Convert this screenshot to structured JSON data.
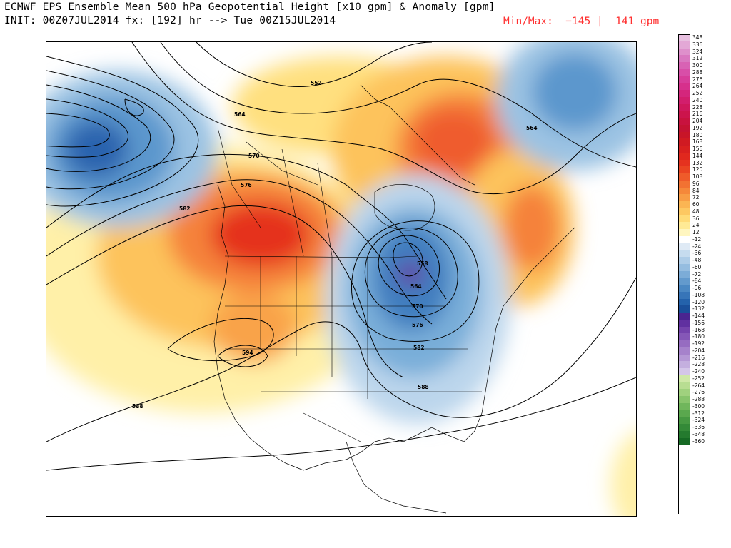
{
  "header": {
    "title_line1": "ECMWF EPS Ensemble Mean 500 hPa Geopotential Height [x10 gpm] & Anomaly [gpm]",
    "title_line2": "INIT: 00Z07JUL2014 fx: [192] hr --> Tue 00Z15JUL2014",
    "minmax": "Min/Max:  −145 |  141 gpm"
  },
  "colors": {
    "text": "#000000",
    "minmax_text": "#ff3030",
    "positive_anomaly_scale": [
      "#fffdd0",
      "#fff0a8",
      "#ffe07f",
      "#fdc35c",
      "#f9a348",
      "#f5823a",
      "#ef5b2f",
      "#e02d26"
    ],
    "negative_anomaly_scale": [
      "#dce9f5",
      "#bcd6ec",
      "#9bc3e3",
      "#79aed9",
      "#5b97cd",
      "#3f7ebf",
      "#2a64ae",
      "#6a2da0"
    ],
    "map_lines": "#000000",
    "terrain_outline": "#888888"
  },
  "colorbar": {
    "entries": [
      {
        "label": "348",
        "color": "#e8c0e0"
      },
      {
        "label": "336",
        "color": "#e3a8d6"
      },
      {
        "label": "324",
        "color": "#de90cb"
      },
      {
        "label": "312",
        "color": "#d978c0"
      },
      {
        "label": "300",
        "color": "#d862b4"
      },
      {
        "label": "288",
        "color": "#d84ea8"
      },
      {
        "label": "276",
        "color": "#d73d9a"
      },
      {
        "label": "264",
        "color": "#d6308c"
      },
      {
        "label": "252",
        "color": "#d4267c"
      },
      {
        "label": "240",
        "color": "#d21e6c"
      },
      {
        "label": "228",
        "color": "#cf185c"
      },
      {
        "label": "216",
        "color": "#cc144c"
      },
      {
        "label": "204",
        "color": "#c8123e"
      },
      {
        "label": "192",
        "color": "#c41232"
      },
      {
        "label": "180",
        "color": "#c81528"
      },
      {
        "label": "168",
        "color": "#d01a22"
      },
      {
        "label": "156",
        "color": "#d8201f"
      },
      {
        "label": "144",
        "color": "#e0281e"
      },
      {
        "label": "132",
        "color": "#e5321f"
      },
      {
        "label": "120",
        "color": "#ea4422"
      },
      {
        "label": "108",
        "color": "#ef5b2a"
      },
      {
        "label": "96",
        "color": "#f27232"
      },
      {
        "label": "84",
        "color": "#f5883a"
      },
      {
        "label": "72",
        "color": "#f89d45"
      },
      {
        "label": "60",
        "color": "#fbb553"
      },
      {
        "label": "48",
        "color": "#fdc862"
      },
      {
        "label": "36",
        "color": "#ffdb78"
      },
      {
        "label": "24",
        "color": "#ffea95"
      },
      {
        "label": "12",
        "color": "#fff6c0"
      },
      {
        "label": "-12",
        "color": "#ffffff"
      },
      {
        "label": "-24",
        "color": "#dfeaf5"
      },
      {
        "label": "-36",
        "color": "#c6dcef"
      },
      {
        "label": "-48",
        "color": "#aecde8"
      },
      {
        "label": "-60",
        "color": "#95bde0"
      },
      {
        "label": "-72",
        "color": "#7cacd7"
      },
      {
        "label": "-84",
        "color": "#639acd"
      },
      {
        "label": "-96",
        "color": "#4b88c3"
      },
      {
        "label": "-108",
        "color": "#3775b8"
      },
      {
        "label": "-120",
        "color": "#2462ab"
      },
      {
        "label": "-132",
        "color": "#1a4f9a"
      },
      {
        "label": "-144",
        "color": "#4a2590"
      },
      {
        "label": "-156",
        "color": "#6030a0"
      },
      {
        "label": "-168",
        "color": "#7443ac"
      },
      {
        "label": "-180",
        "color": "#8557b7"
      },
      {
        "label": "-192",
        "color": "#966cc1"
      },
      {
        "label": "-204",
        "color": "#a682cb"
      },
      {
        "label": "-216",
        "color": "#b598d5"
      },
      {
        "label": "-228",
        "color": "#c4afdf"
      },
      {
        "label": "-240",
        "color": "#d4c6e9"
      },
      {
        "label": "-252",
        "color": "#cfe8a8"
      },
      {
        "label": "-264",
        "color": "#b8dd92"
      },
      {
        "label": "-276",
        "color": "#a0d17e"
      },
      {
        "label": "-288",
        "color": "#88c46c"
      },
      {
        "label": "-300",
        "color": "#70b65c"
      },
      {
        "label": "-312",
        "color": "#5aa84e"
      },
      {
        "label": "-324",
        "color": "#469942"
      },
      {
        "label": "-336",
        "color": "#348a38"
      },
      {
        "label": "-348",
        "color": "#247a2e"
      },
      {
        "label": "-360",
        "color": "#166a24"
      }
    ]
  },
  "contour_labels": {
    "c552_north": "552",
    "c564_west": "564",
    "c570": "570",
    "c576_west": "576",
    "c582_west": "582",
    "c564_east": "564",
    "c594": "594",
    "c588_sw": "588",
    "c558_low": "558",
    "c564_low": "564",
    "c570_low": "570",
    "c576_low": "576",
    "c582_low": "582",
    "c588_se": "588"
  },
  "map": {
    "features": [
      "geopotential-height-contours",
      "anomaly-shading",
      "coastlines",
      "state-borders",
      "province-borders"
    ]
  }
}
